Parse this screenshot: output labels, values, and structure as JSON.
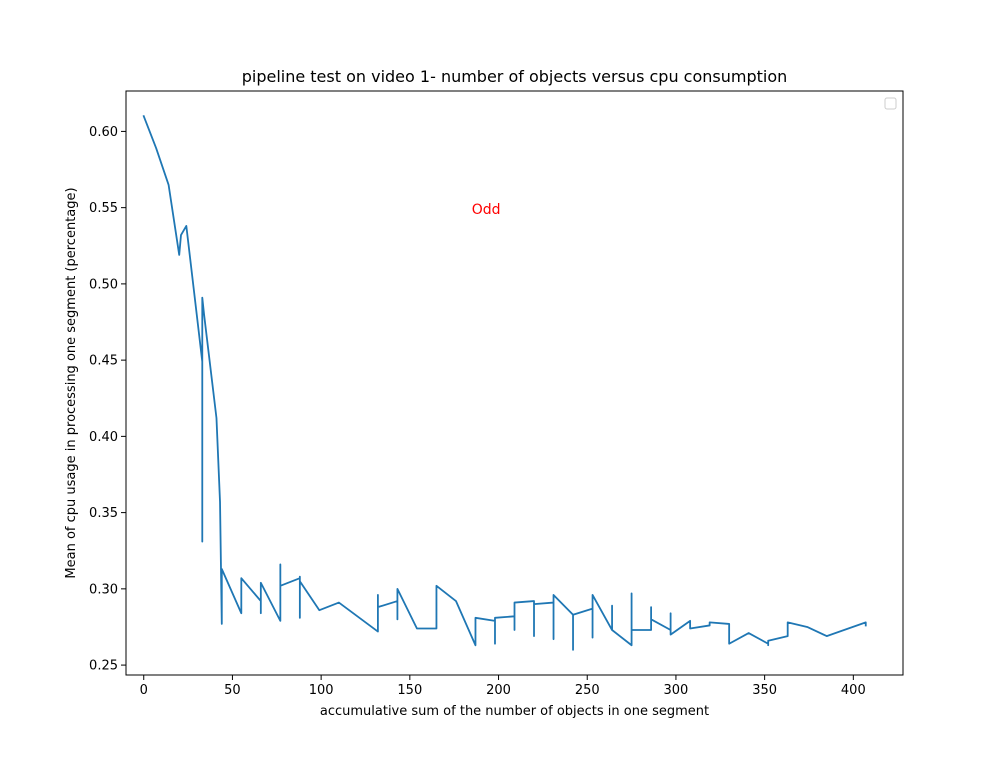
{
  "chart_data": {
    "type": "line",
    "title": "pipeline test on video 1- number of objects versus cpu consumption",
    "xlabel": "accumulative sum of the number of objects in one segment",
    "ylabel": "Mean of cpu usage in processing one segment (percentage)",
    "xlim": [
      -10,
      428
    ],
    "ylim": [
      0.2435,
      0.6265
    ],
    "xticks": [
      0,
      50,
      100,
      150,
      200,
      250,
      300,
      350,
      400
    ],
    "xtick_labels": [
      "0",
      "50",
      "100",
      "150",
      "200",
      "250",
      "300",
      "350",
      "400"
    ],
    "yticks": [
      0.25,
      0.3,
      0.35,
      0.4,
      0.45,
      0.5,
      0.55,
      0.6
    ],
    "ytick_labels": [
      "0.25",
      "0.30",
      "0.35",
      "0.40",
      "0.45",
      "0.50",
      "0.55",
      "0.60"
    ],
    "grid": false,
    "legend": {
      "placement": "top-right",
      "entries": []
    },
    "series": [
      {
        "color": "#1f77b4",
        "x": [
          0,
          7,
          14,
          20,
          21,
          24,
          33,
          33,
          33,
          34,
          41,
          43,
          44,
          44,
          55,
          55,
          55,
          66,
          66,
          66,
          77,
          77,
          77,
          88,
          88,
          88,
          88,
          88,
          99,
          110,
          132,
          132,
          132,
          143,
          143,
          143,
          154,
          165,
          165,
          176,
          187,
          187,
          198,
          198,
          198,
          209,
          209,
          209,
          220,
          220,
          220,
          231,
          231,
          231,
          242,
          242,
          242,
          253,
          253,
          253,
          264,
          264,
          264,
          275,
          275,
          275,
          286,
          286,
          286,
          297,
          297,
          297,
          308,
          308,
          319,
          319,
          330,
          330,
          341,
          352,
          352,
          352,
          363,
          363,
          374,
          385,
          407,
          407
        ],
        "y": [
          0.61,
          0.589,
          0.565,
          0.519,
          0.532,
          0.538,
          0.449,
          0.331,
          0.491,
          0.48,
          0.412,
          0.357,
          0.277,
          0.313,
          0.284,
          0.307,
          0.307,
          0.292,
          0.284,
          0.304,
          0.279,
          0.316,
          0.302,
          0.307,
          0.281,
          0.3,
          0.308,
          0.305,
          0.286,
          0.291,
          0.272,
          0.296,
          0.288,
          0.292,
          0.28,
          0.3,
          0.274,
          0.274,
          0.302,
          0.292,
          0.263,
          0.281,
          0.279,
          0.264,
          0.281,
          0.282,
          0.273,
          0.291,
          0.292,
          0.269,
          0.29,
          0.291,
          0.267,
          0.296,
          0.283,
          0.26,
          0.283,
          0.287,
          0.268,
          0.296,
          0.273,
          0.289,
          0.273,
          0.263,
          0.297,
          0.273,
          0.273,
          0.288,
          0.28,
          0.273,
          0.284,
          0.27,
          0.279,
          0.274,
          0.276,
          0.278,
          0.277,
          0.264,
          0.271,
          0.264,
          0.263,
          0.266,
          0.269,
          0.278,
          0.275,
          0.269,
          0.278,
          0.276
        ]
      }
    ],
    "annotations": [
      {
        "text": "Odd",
        "x": 193,
        "y": 0.549,
        "color": "#ff0000"
      }
    ]
  }
}
